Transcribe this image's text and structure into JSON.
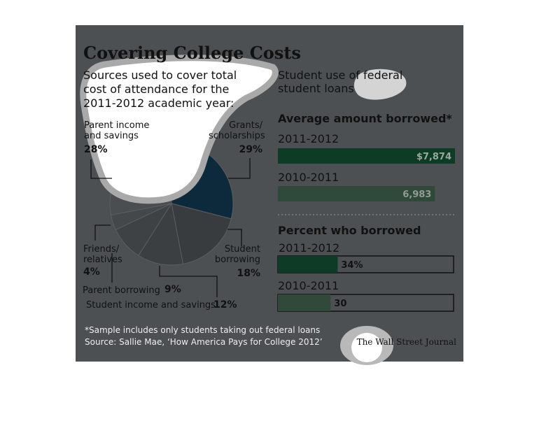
{
  "title": "Covering College Costs",
  "section_title": "Student use of federal student loans",
  "footnote": "*Sample includes only students taking out federal loans",
  "source": "Source: Sallie Mae, ‘How America Pays for College 2012’",
  "credit": "The Wall Street Journal",
  "chart_data": [
    {
      "type": "pie",
      "subtitle": "Sources used to cover total cost of attendance for the 2011-2012 academic year:",
      "categories": [
        "Grants/ scholarships",
        "Student borrowing",
        "Student income and savings",
        "Parent borrowing",
        "Friends/ relatives",
        "Parent income and savings"
      ],
      "values": [
        29,
        18,
        12,
        9,
        4,
        28
      ],
      "value_labels": [
        "29%",
        "18%",
        "12%",
        "9%",
        "4%",
        "28%"
      ],
      "colors": [
        "#0d2a3c",
        "#393c3f",
        "#3c3f42",
        "#3f4245",
        "#45484b",
        "#4b4e51"
      ]
    },
    {
      "type": "bar",
      "title": "Average amount borrowed*",
      "categories": [
        "2011-2012",
        "2010-2011"
      ],
      "values": [
        7874,
        6983
      ],
      "value_labels": [
        "$7,874",
        "6,983"
      ],
      "colors": [
        "#0e3b26",
        "#2f4a38"
      ]
    },
    {
      "type": "bar",
      "title": "Percent who borrowed",
      "categories": [
        "2011-2012",
        "2010-2011"
      ],
      "values": [
        34,
        30
      ],
      "value_labels": [
        "34%",
        "30"
      ],
      "colors": [
        "#0e3b26",
        "#2f4a38"
      ],
      "xlim": [
        0,
        100
      ]
    }
  ]
}
